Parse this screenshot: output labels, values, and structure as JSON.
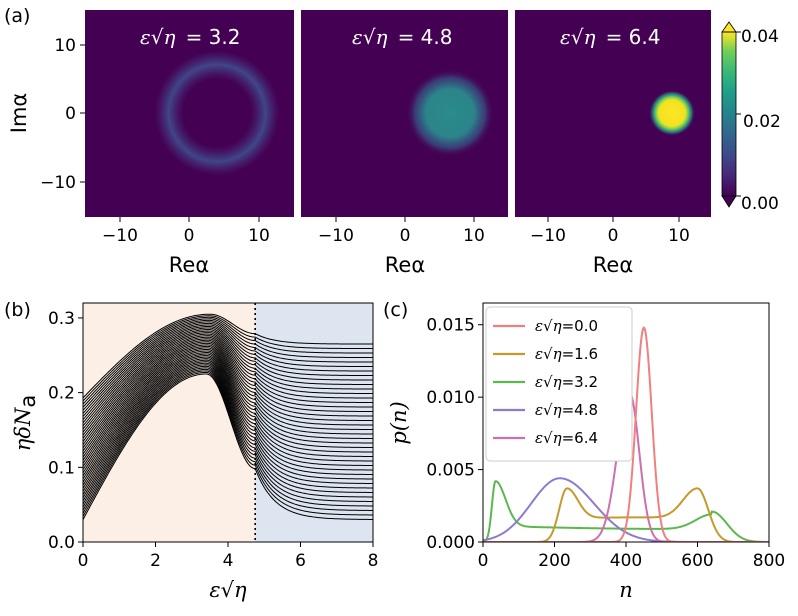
{
  "panel_labels": [
    "(a)",
    "(b)",
    "(c)"
  ],
  "chart_data": [
    {
      "panel": "(a)",
      "type": "heatmap",
      "subplots": [
        {
          "title_symbol": "ε√η",
          "title_value": "= 3.2",
          "shape": "ring",
          "center": [
            4,
            0
          ],
          "ring_radius": 8,
          "peak": 0.006
        },
        {
          "title_symbol": "ε√η",
          "title_value": "= 4.8",
          "shape": "disk",
          "center": [
            6.5,
            0
          ],
          "radius": 4,
          "peak": 0.015
        },
        {
          "title_symbol": "ε√η",
          "title_value": "= 6.4",
          "shape": "disk",
          "center": [
            9,
            0
          ],
          "radius": 2,
          "peak": 0.04
        }
      ],
      "xlabel": "Reα",
      "ylabel": "Imα",
      "xlim": [
        -15,
        15
      ],
      "ylim": [
        -15,
        15
      ],
      "xticks": [
        "−10",
        "0",
        "10"
      ],
      "yticks": [
        "−10",
        "0",
        "10"
      ],
      "colorbar": {
        "ticks": [
          "0.00",
          "0.02",
          "0.04"
        ],
        "range": [
          0,
          0.04
        ],
        "colormap": "viridis",
        "extend": "both"
      }
    },
    {
      "panel": "(b)",
      "type": "line",
      "xlabel_symbol": "ε√η",
      "ylabel": "ηδN",
      "ylabel_sub": "a",
      "xlim": [
        0,
        8
      ],
      "ylim": [
        0,
        0.32
      ],
      "xticks": [
        "0",
        "2",
        "4",
        "6",
        "8"
      ],
      "yticks": [
        "0.0",
        "0.1",
        "0.2",
        "0.3"
      ],
      "dotted_vline_x": 4.75,
      "regions": [
        {
          "from": 0,
          "to": 4.75,
          "color": "#fcefe6"
        },
        {
          "from": 4.75,
          "to": 8,
          "color": "#dde5f1"
        }
      ],
      "curve_family": {
        "count": 40,
        "line_color": "#000000",
        "bottom_curve": {
          "start": 0.03,
          "peak_x": 3.4,
          "peak": 0.225,
          "end": 0.03
        },
        "top_curve": {
          "start": 0.193,
          "peak_x": 3.5,
          "peak": 0.305,
          "end": 0.265
        }
      }
    },
    {
      "panel": "(c)",
      "type": "line",
      "xlabel": "n",
      "ylabel": "p(n)",
      "xlim": [
        0,
        800
      ],
      "ylim": [
        0,
        0.0165
      ],
      "xticks": [
        "0",
        "200",
        "400",
        "600",
        "800"
      ],
      "yticks": [
        "0.000",
        "0.005",
        "0.010",
        "0.015"
      ],
      "legend_position": "upper-left",
      "series": [
        {
          "name_symbol": "ε√η",
          "name_value": "=0.0",
          "color": "#f08080",
          "peaks": [
            {
              "n": 450,
              "height": 0.0148,
              "width": 22
            }
          ]
        },
        {
          "name_symbol": "ε√η",
          "name_value": "=1.6",
          "color": "#c49a2c",
          "peaks": [
            {
              "n": 235,
              "height": 0.0037
            },
            {
              "n": 600,
              "height": 0.0037
            }
          ],
          "plateau": 0.0016
        },
        {
          "name_symbol": "ε√η",
          "name_value": "=3.2",
          "color": "#5bb84d",
          "peaks": [
            {
              "n": 35,
              "height": 0.0042
            },
            {
              "n": 640,
              "height": 0.0021
            }
          ],
          "plateau": 0.0011
        },
        {
          "name_symbol": "ε√η",
          "name_value": "=4.8",
          "color": "#8f7ad0",
          "peaks": [
            {
              "n": 215,
              "height": 0.0044,
              "width": 90
            }
          ]
        },
        {
          "name_symbol": "ε√η",
          "name_value": "=6.4",
          "color": "#cf6fb0",
          "peaks": [
            {
              "n": 410,
              "height": 0.0103,
              "width": 30
            }
          ]
        }
      ]
    }
  ]
}
